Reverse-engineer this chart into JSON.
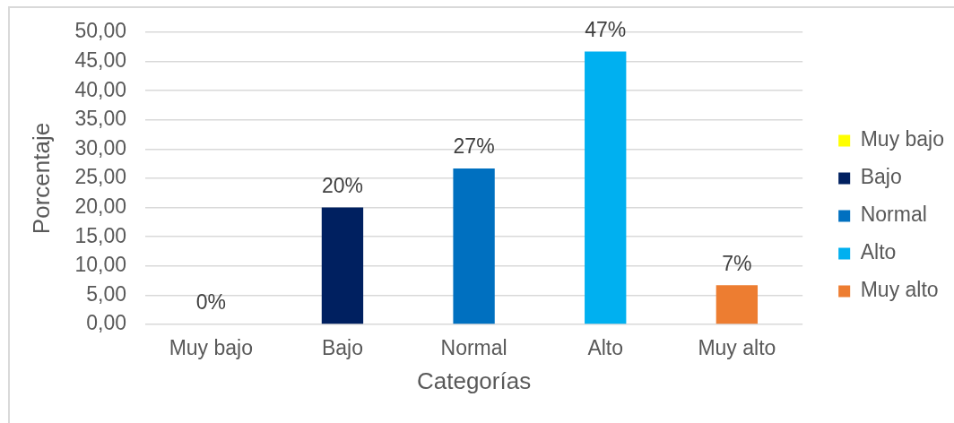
{
  "chart_data": {
    "type": "bar",
    "categories": [
      "Muy bajo",
      "Bajo",
      "Normal",
      "Alto",
      "Muy alto"
    ],
    "series": [
      {
        "name": "Muy bajo",
        "color": "#ffff00",
        "values": [
          0,
          null,
          null,
          null,
          null
        ],
        "value_labels": [
          "0%",
          null,
          null,
          null,
          null
        ]
      },
      {
        "name": "Bajo",
        "color": "#002060",
        "values": [
          null,
          20,
          null,
          null,
          null
        ],
        "value_labels": [
          null,
          "20%",
          null,
          null,
          null
        ]
      },
      {
        "name": "Normal",
        "color": "#0070c0",
        "values": [
          null,
          null,
          26.7,
          null,
          null
        ],
        "value_labels": [
          null,
          null,
          "27%",
          null,
          null
        ]
      },
      {
        "name": "Alto",
        "color": "#00b0f0",
        "values": [
          null,
          null,
          null,
          46.7,
          null
        ],
        "value_labels": [
          null,
          null,
          null,
          "47%",
          null
        ]
      },
      {
        "name": "Muy alto",
        "color": "#ed7d31",
        "values": [
          null,
          null,
          null,
          null,
          6.7
        ],
        "value_labels": [
          null,
          null,
          null,
          null,
          "7%"
        ]
      }
    ],
    "xlabel": "Categorías",
    "ylabel": "Porcentaje",
    "ylim": [
      0,
      50
    ],
    "yticks": [
      {
        "value": 0,
        "label": "0,00"
      },
      {
        "value": 5,
        "label": "5,00"
      },
      {
        "value": 10,
        "label": "10,00"
      },
      {
        "value": 15,
        "label": "15,00"
      },
      {
        "value": 20,
        "label": "20,00"
      },
      {
        "value": 25,
        "label": "25,00"
      },
      {
        "value": 30,
        "label": "30,00"
      },
      {
        "value": 35,
        "label": "35,00"
      },
      {
        "value": 40,
        "label": "40,00"
      },
      {
        "value": 45,
        "label": "45,00"
      },
      {
        "value": 50,
        "label": "50,00"
      }
    ],
    "grid": "y",
    "legend": "right"
  }
}
